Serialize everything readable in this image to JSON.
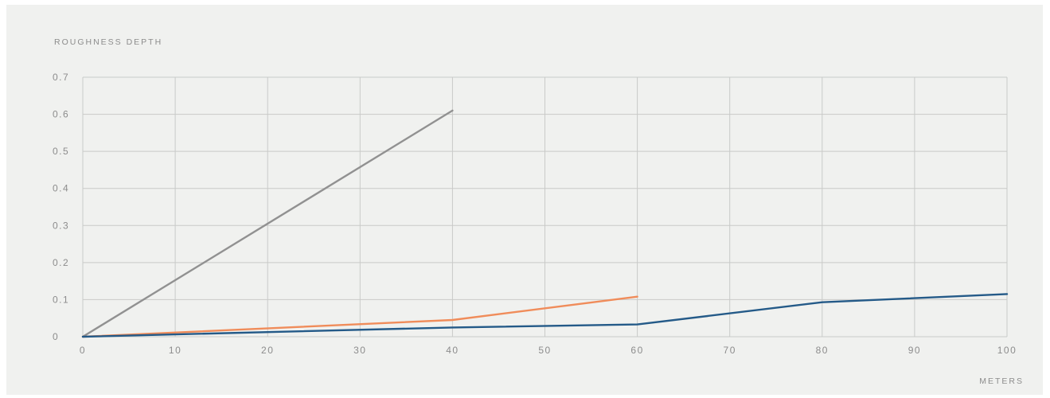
{
  "chart_data": {
    "type": "line",
    "ylabel": "ROUGHNESS DEPTH",
    "xlabel": "METERS",
    "xlim": [
      0,
      100
    ],
    "ylim": [
      0,
      0.7
    ],
    "x_ticks": [
      "0",
      "10",
      "20",
      "30",
      "40",
      "50",
      "60",
      "70",
      "80",
      "90",
      "100"
    ],
    "y_ticks": [
      "0",
      "0.1",
      "0.2",
      "0.3",
      "0.4",
      "0.5",
      "0.6",
      "0.7"
    ],
    "grid": true,
    "series": [
      {
        "color": "#919191",
        "x": [
          0,
          40
        ],
        "y": [
          0,
          0.61
        ]
      },
      {
        "color": "#f08c5a",
        "x": [
          0,
          40,
          60
        ],
        "y": [
          0,
          0.045,
          0.108
        ]
      },
      {
        "color": "#245a88",
        "x": [
          0,
          40,
          60,
          80,
          100
        ],
        "y": [
          0,
          0.025,
          0.033,
          0.093,
          0.115
        ]
      }
    ]
  }
}
